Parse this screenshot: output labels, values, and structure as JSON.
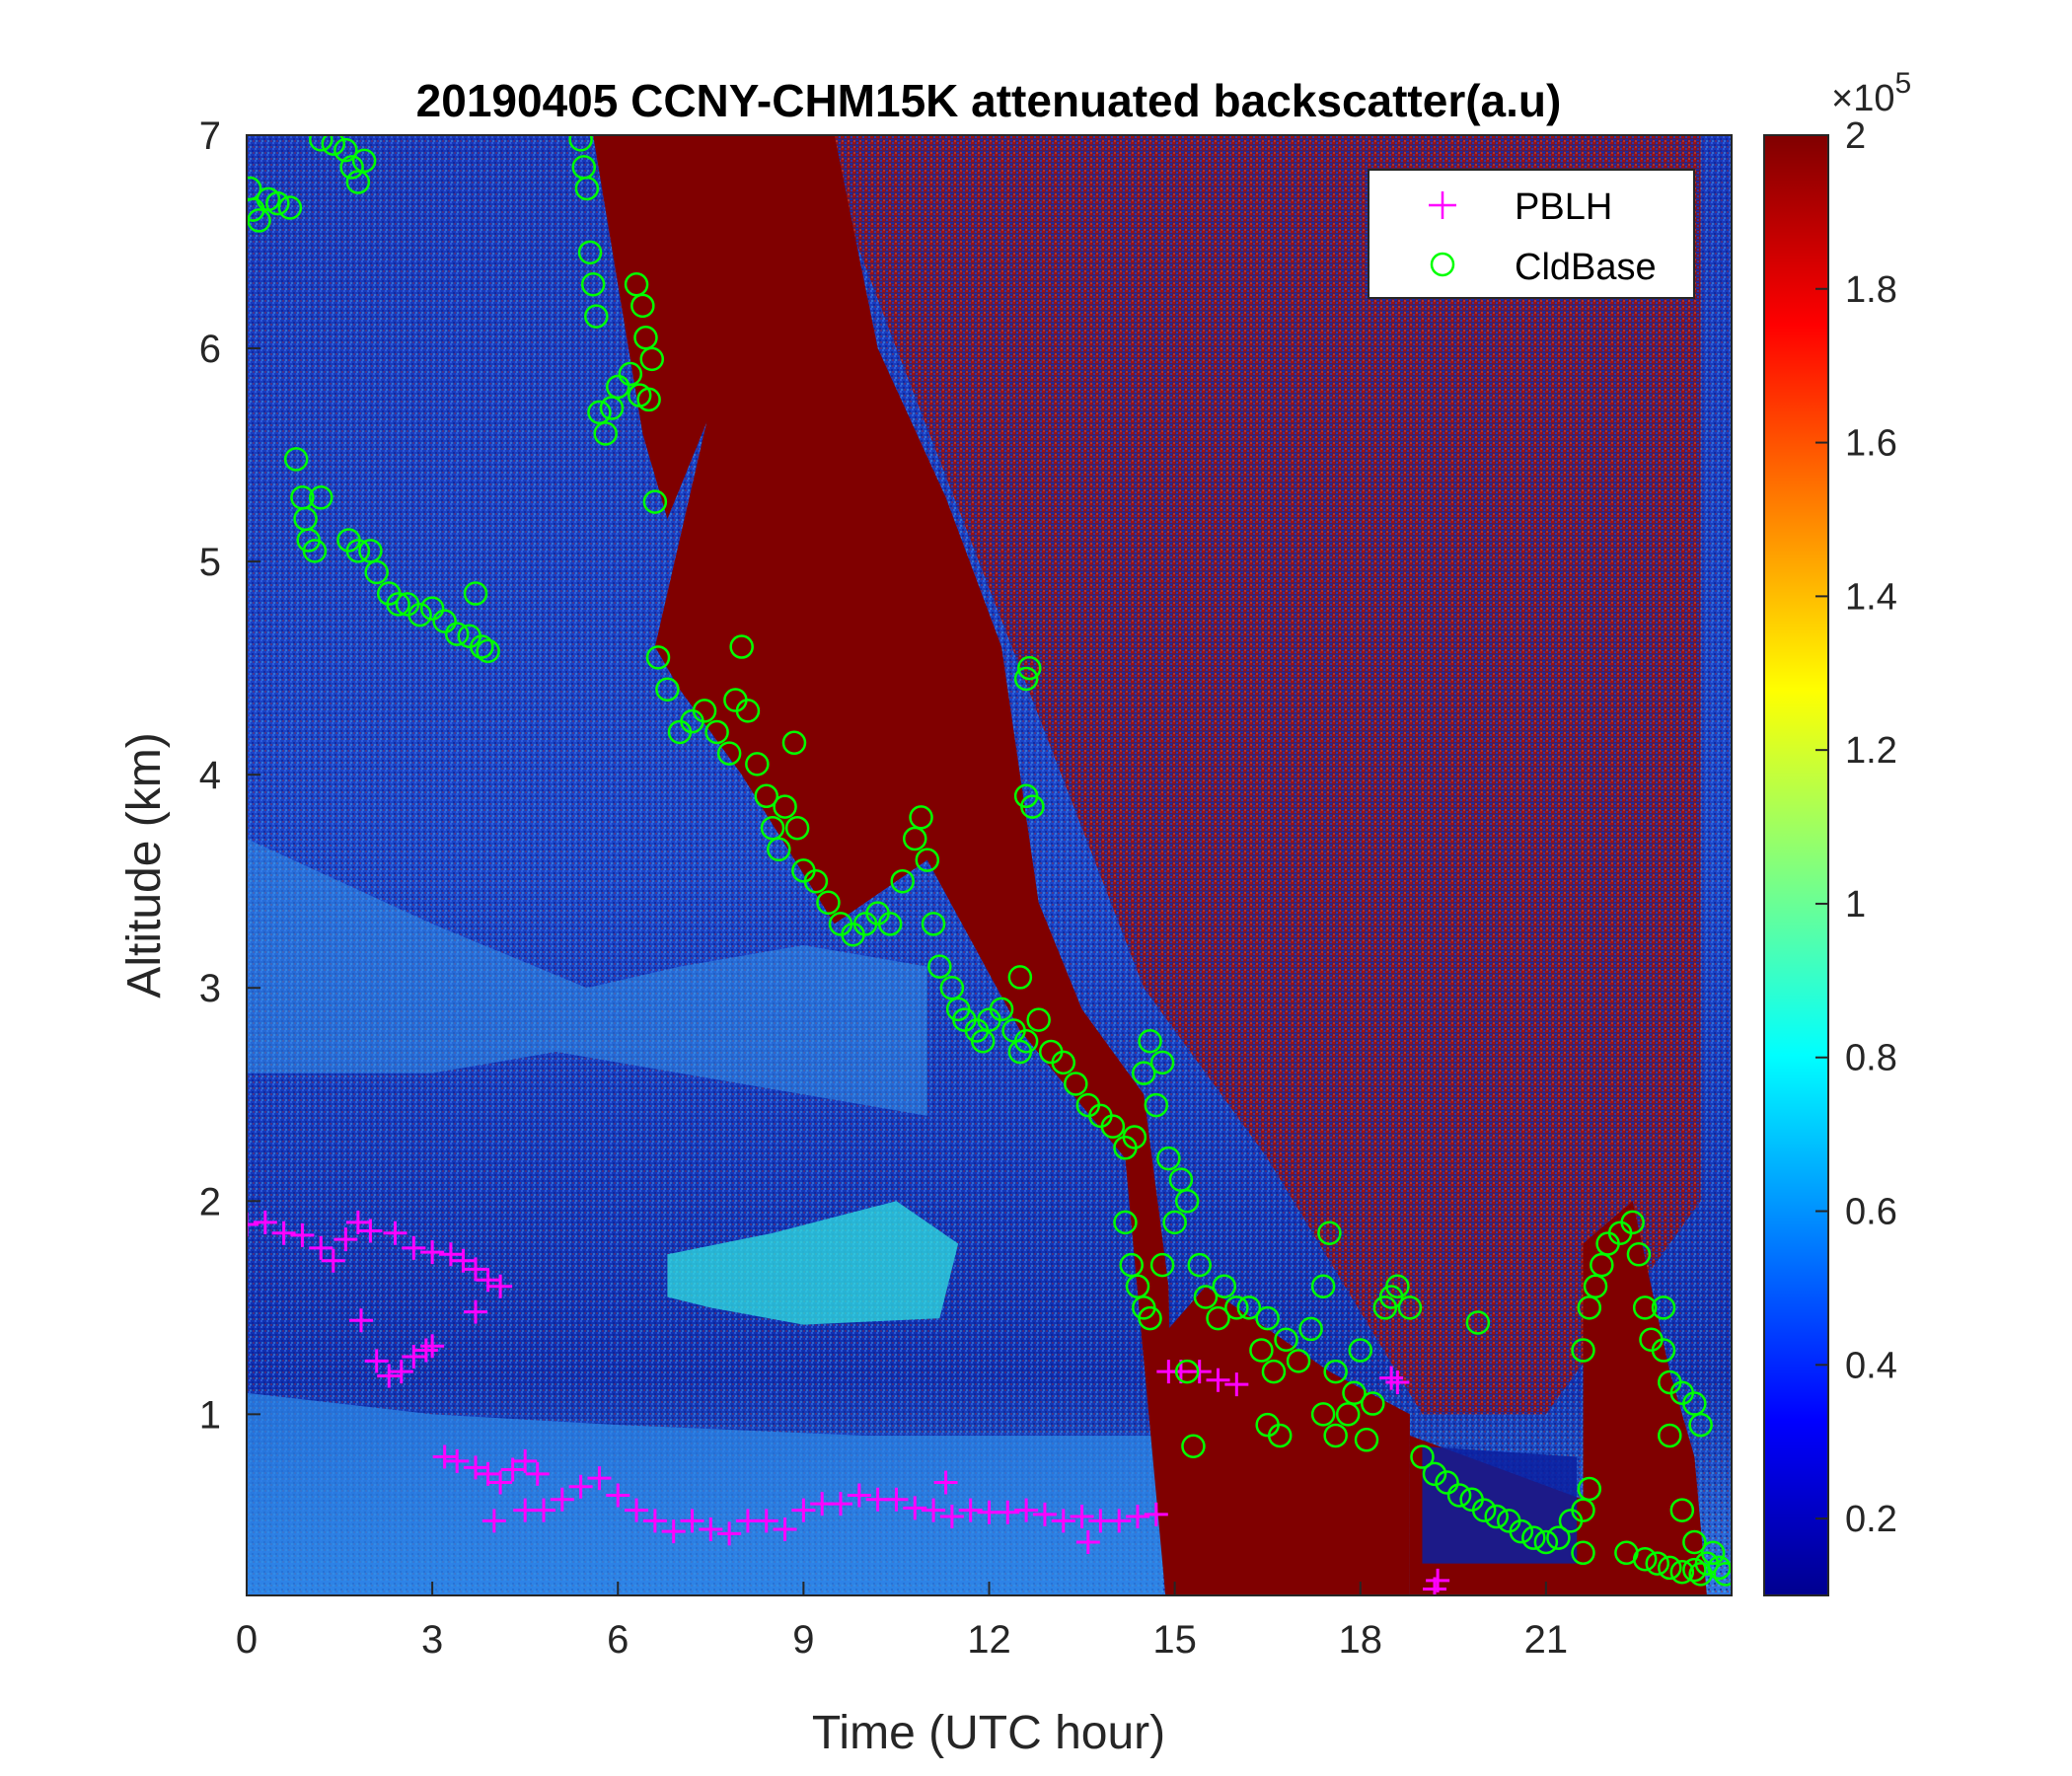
{
  "chart_data": {
    "type": "heatmap",
    "title": "20190405 CCNY-CHM15K attenuated backscatter(a.u)",
    "xlabel": "Time (UTC hour)",
    "ylabel": "Altitude (km)",
    "xlim": [
      0,
      24
    ],
    "ylim": [
      0.15,
      7
    ],
    "x_ticks": [
      0,
      3,
      6,
      9,
      12,
      15,
      18,
      21
    ],
    "y_ticks": [
      1,
      2,
      3,
      4,
      5,
      6,
      7
    ],
    "colorbar": {
      "colormap": "jet",
      "clim": [
        0.1,
        2
      ],
      "ticks": [
        0.2,
        0.4,
        0.6,
        0.8,
        1,
        1.2,
        1.4,
        1.6,
        1.8,
        2
      ],
      "exponent_label": "×10",
      "exponent": "5"
    },
    "legend": {
      "location": "top-right",
      "entries": [
        "PBLH",
        "CldBase"
      ],
      "colors": [
        "#ff00ff",
        "#00ff00"
      ],
      "markers": [
        "+",
        "o"
      ]
    },
    "series": [
      {
        "name": "PBLH",
        "marker": "+",
        "color": "#ff00ff",
        "points": [
          [
            0.0,
            1.89
          ],
          [
            0.3,
            1.9
          ],
          [
            0.6,
            1.85
          ],
          [
            0.9,
            1.84
          ],
          [
            1.2,
            1.78
          ],
          [
            1.4,
            1.72
          ],
          [
            1.6,
            1.82
          ],
          [
            1.8,
            1.9
          ],
          [
            2.0,
            1.86
          ],
          [
            1.85,
            1.44
          ],
          [
            2.1,
            1.25
          ],
          [
            2.3,
            1.18
          ],
          [
            2.5,
            1.2
          ],
          [
            2.7,
            1.27
          ],
          [
            2.9,
            1.3
          ],
          [
            3.0,
            1.32
          ],
          [
            2.4,
            1.85
          ],
          [
            2.7,
            1.78
          ],
          [
            3.0,
            1.76
          ],
          [
            3.3,
            1.75
          ],
          [
            3.5,
            1.72
          ],
          [
            3.7,
            1.68
          ],
          [
            3.9,
            1.63
          ],
          [
            4.1,
            1.6
          ],
          [
            3.7,
            1.48
          ],
          [
            3.2,
            0.8
          ],
          [
            3.4,
            0.78
          ],
          [
            3.7,
            0.75
          ],
          [
            3.9,
            0.72
          ],
          [
            4.1,
            0.68
          ],
          [
            4.3,
            0.74
          ],
          [
            4.5,
            0.78
          ],
          [
            4.7,
            0.72
          ],
          [
            4.0,
            0.5
          ],
          [
            4.5,
            0.55
          ],
          [
            4.8,
            0.55
          ],
          [
            5.1,
            0.6
          ],
          [
            5.4,
            0.66
          ],
          [
            5.7,
            0.7
          ],
          [
            6.0,
            0.62
          ],
          [
            6.3,
            0.55
          ],
          [
            6.6,
            0.5
          ],
          [
            6.9,
            0.45
          ],
          [
            7.2,
            0.5
          ],
          [
            7.5,
            0.46
          ],
          [
            7.8,
            0.44
          ],
          [
            8.1,
            0.5
          ],
          [
            8.4,
            0.5
          ],
          [
            8.7,
            0.46
          ],
          [
            9.0,
            0.55
          ],
          [
            9.3,
            0.58
          ],
          [
            9.6,
            0.58
          ],
          [
            9.9,
            0.62
          ],
          [
            10.2,
            0.6
          ],
          [
            10.5,
            0.6
          ],
          [
            10.8,
            0.56
          ],
          [
            11.1,
            0.55
          ],
          [
            11.4,
            0.52
          ],
          [
            11.7,
            0.55
          ],
          [
            12.0,
            0.54
          ],
          [
            12.3,
            0.54
          ],
          [
            12.6,
            0.55
          ],
          [
            12.9,
            0.53
          ],
          [
            13.2,
            0.5
          ],
          [
            13.5,
            0.52
          ],
          [
            13.8,
            0.5
          ],
          [
            14.1,
            0.5
          ],
          [
            14.4,
            0.52
          ],
          [
            14.7,
            0.53
          ],
          [
            13.6,
            0.4
          ],
          [
            11.3,
            0.68
          ],
          [
            14.9,
            1.2
          ],
          [
            15.1,
            1.2
          ],
          [
            15.4,
            1.2
          ],
          [
            15.7,
            1.16
          ],
          [
            16.0,
            1.14
          ],
          [
            18.5,
            1.17
          ],
          [
            18.6,
            1.15
          ],
          [
            19.2,
            0.18
          ],
          [
            19.25,
            0.22
          ]
        ]
      },
      {
        "name": "CldBase",
        "marker": "o",
        "color": "#00ff00",
        "points": [
          [
            0.05,
            6.75
          ],
          [
            0.1,
            6.65
          ],
          [
            0.2,
            6.6
          ],
          [
            0.35,
            6.7
          ],
          [
            0.5,
            6.68
          ],
          [
            0.7,
            6.66
          ],
          [
            1.2,
            6.98
          ],
          [
            1.4,
            6.96
          ],
          [
            1.6,
            6.93
          ],
          [
            1.7,
            6.85
          ],
          [
            1.8,
            6.78
          ],
          [
            1.9,
            6.88
          ],
          [
            0.8,
            5.48
          ],
          [
            0.9,
            5.3
          ],
          [
            0.95,
            5.2
          ],
          [
            1.0,
            5.1
          ],
          [
            1.1,
            5.05
          ],
          [
            1.2,
            5.3
          ],
          [
            1.65,
            5.1
          ],
          [
            1.8,
            5.05
          ],
          [
            2.0,
            5.05
          ],
          [
            2.1,
            4.95
          ],
          [
            2.3,
            4.85
          ],
          [
            2.45,
            4.8
          ],
          [
            2.6,
            4.8
          ],
          [
            2.8,
            4.75
          ],
          [
            3.0,
            4.78
          ],
          [
            3.2,
            4.72
          ],
          [
            3.4,
            4.66
          ],
          [
            3.6,
            4.65
          ],
          [
            3.7,
            4.85
          ],
          [
            3.8,
            4.6
          ],
          [
            3.9,
            4.58
          ],
          [
            5.4,
            6.98
          ],
          [
            5.45,
            6.85
          ],
          [
            5.5,
            6.75
          ],
          [
            5.55,
            6.45
          ],
          [
            5.6,
            6.3
          ],
          [
            5.65,
            6.15
          ],
          [
            5.7,
            5.7
          ],
          [
            5.8,
            5.6
          ],
          [
            5.9,
            5.72
          ],
          [
            6.0,
            5.82
          ],
          [
            6.2,
            5.88
          ],
          [
            6.35,
            5.78
          ],
          [
            6.5,
            5.76
          ],
          [
            6.3,
            6.3
          ],
          [
            6.4,
            6.2
          ],
          [
            6.45,
            6.05
          ],
          [
            6.55,
            5.95
          ],
          [
            6.6,
            5.28
          ],
          [
            6.65,
            4.55
          ],
          [
            6.8,
            4.4
          ],
          [
            7.0,
            4.2
          ],
          [
            7.2,
            4.25
          ],
          [
            7.4,
            4.3
          ],
          [
            7.6,
            4.2
          ],
          [
            7.8,
            4.1
          ],
          [
            7.9,
            4.35
          ],
          [
            8.0,
            4.6
          ],
          [
            8.1,
            4.3
          ],
          [
            8.25,
            4.05
          ],
          [
            8.4,
            3.9
          ],
          [
            8.5,
            3.75
          ],
          [
            8.6,
            3.65
          ],
          [
            8.7,
            3.85
          ],
          [
            8.9,
            3.75
          ],
          [
            9.0,
            3.55
          ],
          [
            9.2,
            3.5
          ],
          [
            9.4,
            3.4
          ],
          [
            9.6,
            3.3
          ],
          [
            9.8,
            3.25
          ],
          [
            10.0,
            3.3
          ],
          [
            10.2,
            3.35
          ],
          [
            10.4,
            3.3
          ],
          [
            10.6,
            3.5
          ],
          [
            10.8,
            3.7
          ],
          [
            10.9,
            3.8
          ],
          [
            11.0,
            3.6
          ],
          [
            11.1,
            3.3
          ],
          [
            8.85,
            4.15
          ],
          [
            11.2,
            3.1
          ],
          [
            11.4,
            3.0
          ],
          [
            11.5,
            2.9
          ],
          [
            11.6,
            2.85
          ],
          [
            11.8,
            2.8
          ],
          [
            11.9,
            2.75
          ],
          [
            12.0,
            2.85
          ],
          [
            12.2,
            2.9
          ],
          [
            12.4,
            2.8
          ],
          [
            12.5,
            2.7
          ],
          [
            12.6,
            2.75
          ],
          [
            12.8,
            2.85
          ],
          [
            12.5,
            3.05
          ],
          [
            12.6,
            4.45
          ],
          [
            12.65,
            4.5
          ],
          [
            12.6,
            3.9
          ],
          [
            12.7,
            3.85
          ],
          [
            13.0,
            2.7
          ],
          [
            13.2,
            2.65
          ],
          [
            13.4,
            2.55
          ],
          [
            13.6,
            2.45
          ],
          [
            13.8,
            2.4
          ],
          [
            14.0,
            2.35
          ],
          [
            14.2,
            2.25
          ],
          [
            14.35,
            2.3
          ],
          [
            14.5,
            2.6
          ],
          [
            14.6,
            2.75
          ],
          [
            14.8,
            2.65
          ],
          [
            14.7,
            2.45
          ],
          [
            14.9,
            2.2
          ],
          [
            14.2,
            1.9
          ],
          [
            14.3,
            1.7
          ],
          [
            14.4,
            1.6
          ],
          [
            14.5,
            1.5
          ],
          [
            14.6,
            1.45
          ],
          [
            14.8,
            1.7
          ],
          [
            15.0,
            1.9
          ],
          [
            15.1,
            2.1
          ],
          [
            15.2,
            2.0
          ],
          [
            15.4,
            1.7
          ],
          [
            15.5,
            1.55
          ],
          [
            15.7,
            1.45
          ],
          [
            15.8,
            1.6
          ],
          [
            16.0,
            1.5
          ],
          [
            16.2,
            1.5
          ],
          [
            16.5,
            1.45
          ],
          [
            15.3,
            0.85
          ],
          [
            15.2,
            1.2
          ],
          [
            16.4,
            1.3
          ],
          [
            16.6,
            1.2
          ],
          [
            16.8,
            1.35
          ],
          [
            16.5,
            0.95
          ],
          [
            16.7,
            0.9
          ],
          [
            17.0,
            1.25
          ],
          [
            17.2,
            1.4
          ],
          [
            17.4,
            1.6
          ],
          [
            17.5,
            1.85
          ],
          [
            17.6,
            1.2
          ],
          [
            17.4,
            1.0
          ],
          [
            17.6,
            0.9
          ],
          [
            17.8,
            1.0
          ],
          [
            17.9,
            1.1
          ],
          [
            18.0,
            1.3
          ],
          [
            18.1,
            0.88
          ],
          [
            18.2,
            1.05
          ],
          [
            18.4,
            1.5
          ],
          [
            18.5,
            1.55
          ],
          [
            18.6,
            1.6
          ],
          [
            18.8,
            1.5
          ],
          [
            19.0,
            0.8
          ],
          [
            19.2,
            0.72
          ],
          [
            19.4,
            0.68
          ],
          [
            19.6,
            0.62
          ],
          [
            19.8,
            0.6
          ],
          [
            20.0,
            0.55
          ],
          [
            20.2,
            0.52
          ],
          [
            20.4,
            0.5
          ],
          [
            20.6,
            0.45
          ],
          [
            20.8,
            0.42
          ],
          [
            21.0,
            0.4
          ],
          [
            21.2,
            0.42
          ],
          [
            21.4,
            0.5
          ],
          [
            21.6,
            0.55
          ],
          [
            21.7,
            0.65
          ],
          [
            19.9,
            1.43
          ],
          [
            21.6,
            0.35
          ],
          [
            21.6,
            1.3
          ],
          [
            21.7,
            1.5
          ],
          [
            21.8,
            1.6
          ],
          [
            21.9,
            1.7
          ],
          [
            22.0,
            1.8
          ],
          [
            22.2,
            1.85
          ],
          [
            22.4,
            1.9
          ],
          [
            22.5,
            1.75
          ],
          [
            22.6,
            1.5
          ],
          [
            22.7,
            1.35
          ],
          [
            22.9,
            1.3
          ],
          [
            23.0,
            1.15
          ],
          [
            23.2,
            1.1
          ],
          [
            23.4,
            1.05
          ],
          [
            23.5,
            0.95
          ],
          [
            23.0,
            0.9
          ],
          [
            22.3,
            0.35
          ],
          [
            22.6,
            0.32
          ],
          [
            22.8,
            0.3
          ],
          [
            23.0,
            0.28
          ],
          [
            23.2,
            0.26
          ],
          [
            23.4,
            0.27
          ],
          [
            23.5,
            0.25
          ],
          [
            23.6,
            0.3
          ],
          [
            23.7,
            0.35
          ],
          [
            23.8,
            0.28
          ],
          [
            23.9,
            0.25
          ],
          [
            23.4,
            0.4
          ],
          [
            23.2,
            0.55
          ],
          [
            22.9,
            1.5
          ]
        ]
      }
    ]
  }
}
